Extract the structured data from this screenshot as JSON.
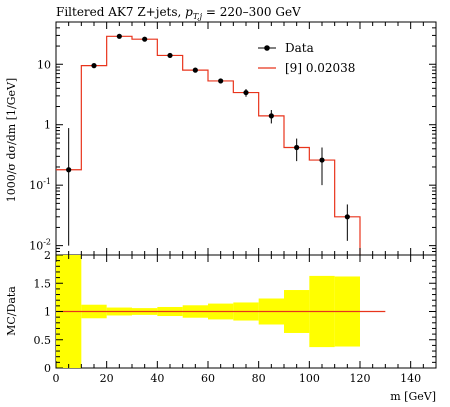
{
  "title": "Filtered AK7 Z+jets, p_T,j = 220–300 GeV",
  "title_parts": {
    "main": "Filtered AK7 Z+jets, ",
    "pt": "p",
    "pt_sub": "T,j",
    "range": " = 220–300 GeV"
  },
  "legend": {
    "data_label": "Data",
    "mc_label": "[9] 0.02038"
  },
  "colors": {
    "mc_line": "#e8341c",
    "ratio_band": "#ffff00",
    "data": "#000000"
  },
  "axes": {
    "top_ylabel": "1000/σ dσ/dm [1/GeV]",
    "bottom_ylabel": "MC/Data",
    "xlabel": "m [GeV]",
    "xticks": [
      "0",
      "20",
      "40",
      "60",
      "80",
      "100",
      "120",
      "140"
    ],
    "top_yticks": [
      "10^{-2}",
      "10^{-1}",
      "1",
      "10"
    ],
    "bottom_yticks": [
      "0",
      "0.5",
      "1",
      "1.5",
      "2"
    ]
  },
  "chart_data": [
    {
      "type": "line",
      "panel": "main",
      "title": "Filtered AK7 Z+jets, p_T,j = 220–300 GeV",
      "xlabel": "m [GeV]",
      "ylabel": "1000/σ dσ/dm [1/GeV]",
      "xlim": [
        0,
        150
      ],
      "ylim": [
        0.007,
        50
      ],
      "yscale": "log",
      "legend_position": "top-right",
      "series": [
        {
          "name": "Data",
          "x": [
            5,
            15,
            25,
            35,
            45,
            55,
            65,
            75,
            85,
            95,
            105,
            115
          ],
          "y": [
            0.18,
            9.5,
            29,
            26,
            14,
            8.0,
            5.3,
            3.4,
            1.4,
            0.42,
            0.26,
            0.03
          ],
          "yerr_low": [
            0.17,
            0.6,
            1.2,
            1.0,
            0.7,
            0.5,
            0.5,
            0.5,
            0.35,
            0.17,
            0.16,
            0.018
          ],
          "yerr_high": [
            0.7,
            0.6,
            1.2,
            1.0,
            0.7,
            0.5,
            0.5,
            0.5,
            0.35,
            0.17,
            0.16,
            0.018
          ]
        },
        {
          "name": "[9] 0.02038",
          "bin_edges": [
            0,
            10,
            20,
            30,
            40,
            50,
            60,
            70,
            80,
            90,
            100,
            110,
            120
          ],
          "y": [
            0.18,
            9.5,
            29,
            26,
            14,
            8.0,
            5.3,
            3.4,
            1.4,
            0.42,
            0.26,
            0.03
          ]
        }
      ]
    },
    {
      "type": "area",
      "panel": "ratio",
      "ylabel": "MC/Data",
      "xlabel": "m [GeV]",
      "xlim": [
        0,
        150
      ],
      "ylim": [
        0,
        2
      ],
      "grid": false,
      "series": [
        {
          "name": "",
          "bin_edges": [
            0,
            10,
            20,
            30,
            40,
            50,
            60,
            70,
            80,
            90,
            100,
            110,
            120
          ],
          "band_low": [
            0.0,
            0.88,
            0.93,
            0.94,
            0.92,
            0.89,
            0.86,
            0.84,
            0.77,
            0.62,
            0.37,
            0.38
          ],
          "band_high": [
            2.0,
            1.12,
            1.07,
            1.06,
            1.08,
            1.11,
            1.14,
            1.16,
            1.23,
            1.38,
            1.63,
            1.62
          ]
        },
        {
          "name": "",
          "x": [
            0,
            130
          ],
          "y": [
            1.0,
            1.0
          ]
        }
      ]
    }
  ]
}
